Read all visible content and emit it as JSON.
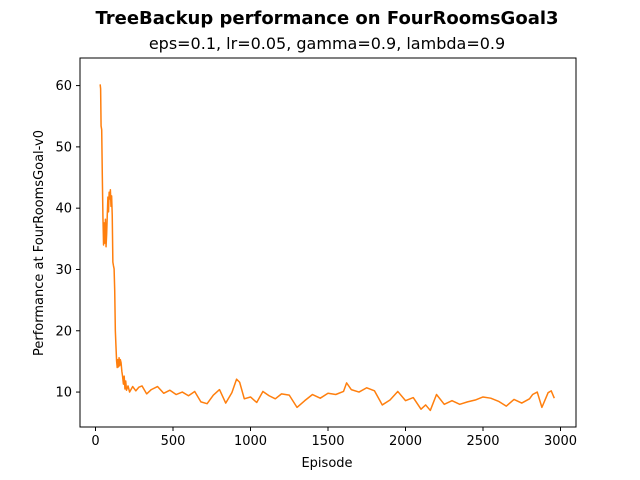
{
  "chart_data": {
    "type": "line",
    "title": "TreeBackup performance on FourRoomsGoal3",
    "subtitle": "eps=0.1, lr=0.05, gamma=0.9, lambda=0.9",
    "xlabel": "Episode",
    "ylabel": "Performance at FourRoomsGoal-v0",
    "xlim": [
      -100,
      3100
    ],
    "ylim": [
      4.3,
      64.5
    ],
    "xticks": [
      0,
      500,
      1000,
      1500,
      2000,
      2500,
      3000
    ],
    "yticks": [
      10,
      20,
      30,
      40,
      50,
      60
    ],
    "grid": false,
    "series": [
      {
        "color": "#ff7f0e",
        "x": [
          30,
          33,
          36,
          40,
          44,
          48,
          52,
          56,
          60,
          64,
          68,
          72,
          76,
          80,
          84,
          88,
          92,
          96,
          100,
          104,
          108,
          112,
          116,
          120,
          124,
          128,
          132,
          136,
          140,
          144,
          148,
          152,
          156,
          160,
          165,
          170,
          175,
          180,
          185,
          190,
          195,
          200,
          210,
          220,
          240,
          260,
          280,
          300,
          330,
          360,
          400,
          440,
          480,
          520,
          560,
          600,
          640,
          680,
          720,
          760,
          800,
          840,
          880,
          910,
          930,
          960,
          1000,
          1040,
          1080,
          1120,
          1160,
          1200,
          1250,
          1300,
          1350,
          1400,
          1450,
          1500,
          1550,
          1600,
          1620,
          1650,
          1700,
          1750,
          1800,
          1850,
          1900,
          1950,
          2000,
          2050,
          2100,
          2130,
          2160,
          2200,
          2250,
          2300,
          2350,
          2400,
          2450,
          2500,
          2550,
          2600,
          2650,
          2700,
          2750,
          2800,
          2820,
          2850,
          2880,
          2900,
          2920,
          2940,
          2960
        ],
        "y": [
          60.2,
          59.5,
          53.4,
          52.8,
          45.2,
          38.5,
          34.0,
          37.6,
          34.3,
          38.2,
          33.7,
          35.8,
          38.9,
          41.8,
          39.4,
          42.6,
          41.5,
          43.0,
          40.3,
          42.0,
          38.8,
          31.2,
          30.6,
          30.1,
          26.5,
          20.0,
          17.5,
          15.1,
          14.0,
          15.3,
          14.1,
          15.6,
          14.3,
          15.3,
          14.8,
          13.4,
          12.5,
          11.3,
          12.6,
          10.5,
          11.8,
          10.3,
          11.0,
          10.0,
          10.9,
          10.2,
          10.8,
          11.0,
          9.7,
          10.4,
          10.9,
          9.8,
          10.3,
          9.6,
          10.0,
          9.4,
          10.1,
          8.4,
          8.1,
          9.5,
          10.4,
          8.2,
          9.9,
          12.1,
          11.6,
          8.9,
          9.2,
          8.3,
          10.1,
          9.4,
          8.9,
          9.7,
          9.5,
          7.5,
          8.6,
          9.6,
          9.0,
          9.8,
          9.6,
          10.1,
          11.5,
          10.4,
          10.0,
          10.7,
          10.2,
          7.9,
          8.7,
          10.1,
          8.6,
          9.1,
          7.2,
          7.9,
          7.0,
          9.6,
          8.0,
          8.6,
          8.0,
          8.4,
          8.7,
          9.2,
          9.0,
          8.5,
          7.7,
          8.8,
          8.2,
          8.9,
          9.6,
          10.0,
          7.5,
          8.7,
          9.9,
          10.2,
          9.0
        ]
      }
    ]
  }
}
